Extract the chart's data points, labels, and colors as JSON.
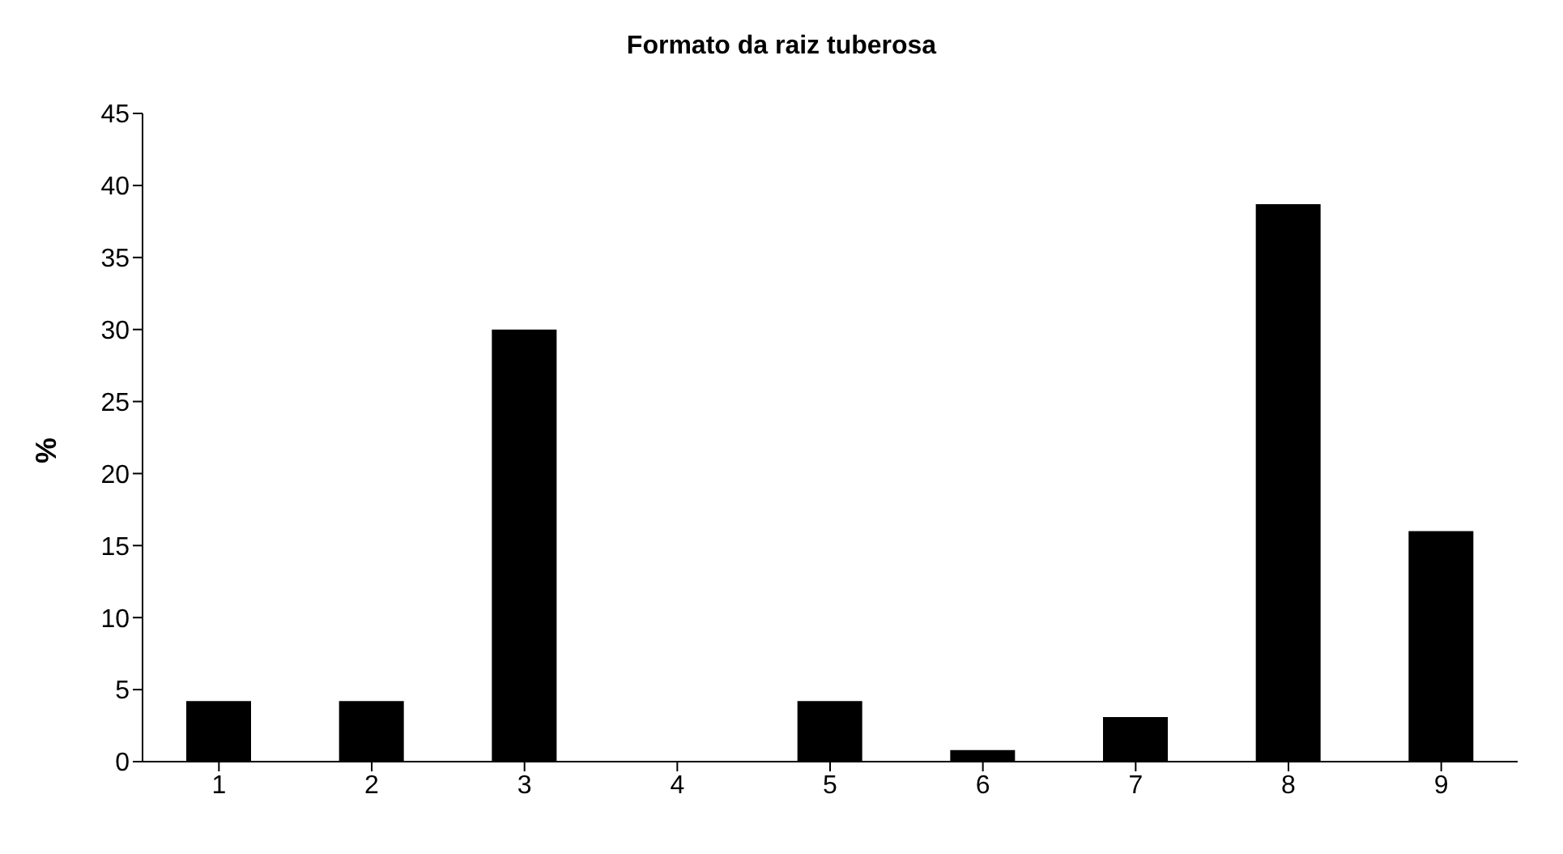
{
  "chart_data": {
    "type": "bar",
    "title": "Formato da raiz tuberosa",
    "ylabel": "%",
    "categories": [
      "1",
      "2",
      "3",
      "4",
      "5",
      "6",
      "7",
      "8",
      "9"
    ],
    "values": [
      4.2,
      4.2,
      30,
      0,
      4.2,
      0.8,
      3.1,
      38.7,
      16
    ],
    "color": "#000000",
    "ylim": [
      0,
      45
    ],
    "yticks": [
      0,
      5,
      10,
      15,
      20,
      25,
      30,
      35,
      40,
      45
    ]
  }
}
